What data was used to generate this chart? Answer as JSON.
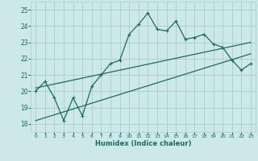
{
  "title": "",
  "xlabel": "Humidex (Indice chaleur)",
  "bg_color": "#cce8e8",
  "grid_color": "#aacccc",
  "line_color": "#1a6b60",
  "xlim": [
    -0.5,
    23.5
  ],
  "ylim": [
    17.5,
    25.5
  ],
  "xticks": [
    0,
    1,
    2,
    3,
    4,
    5,
    6,
    7,
    8,
    9,
    10,
    11,
    12,
    13,
    14,
    15,
    16,
    17,
    18,
    19,
    20,
    21,
    22,
    23
  ],
  "yticks": [
    18,
    19,
    20,
    21,
    22,
    23,
    24,
    25
  ],
  "line1_x": [
    0,
    1,
    2,
    3,
    4,
    5,
    6,
    7,
    8,
    9,
    10,
    11,
    12,
    13,
    14,
    15,
    16,
    17,
    18,
    19,
    20,
    21,
    22,
    23
  ],
  "line1_y": [
    20.0,
    20.6,
    19.6,
    18.2,
    19.6,
    18.5,
    20.3,
    21.0,
    21.7,
    21.9,
    23.5,
    24.1,
    24.8,
    23.8,
    23.7,
    24.3,
    23.2,
    23.3,
    23.5,
    22.9,
    22.7,
    21.9,
    21.3,
    21.7
  ],
  "line2_x": [
    0,
    23
  ],
  "line2_y": [
    20.2,
    23.0
  ],
  "line3_x": [
    0,
    23
  ],
  "line3_y": [
    18.2,
    22.3
  ],
  "markersize": 3,
  "linewidth": 0.9
}
